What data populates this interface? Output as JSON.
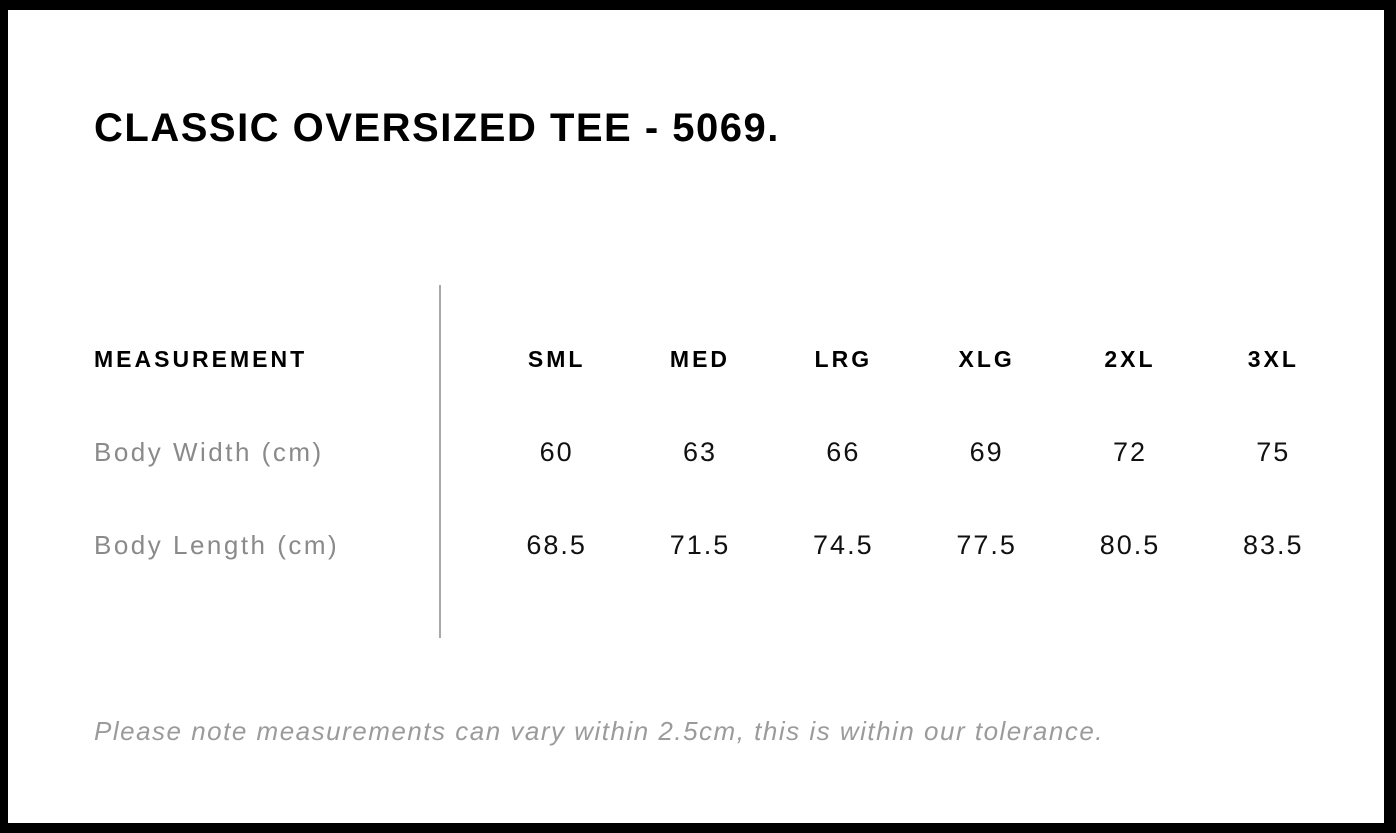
{
  "page": {
    "title": "CLASSIC OVERSIZED TEE - 5069.",
    "footer_note": "Please note measurements can vary within 2.5cm, this is within our tolerance."
  },
  "size_table": {
    "header": {
      "measurement_label": "MEASUREMENT",
      "sizes": [
        "SML",
        "MED",
        "LRG",
        "XLG",
        "2XL",
        "3XL"
      ]
    },
    "rows": [
      {
        "label": "Body Width (cm)",
        "values": [
          "60",
          "63",
          "66",
          "69",
          "72",
          "75"
        ]
      },
      {
        "label": "Body Length (cm)",
        "values": [
          "68.5",
          "71.5",
          "74.5",
          "77.5",
          "80.5",
          "83.5"
        ]
      }
    ]
  },
  "colors": {
    "frame_border": "#000000",
    "heading_text": "#000000",
    "row_label_text": "#8a8a8a",
    "value_text": "#111111",
    "divider": "#a8a8a8",
    "footer_text": "#9b9b9b"
  }
}
